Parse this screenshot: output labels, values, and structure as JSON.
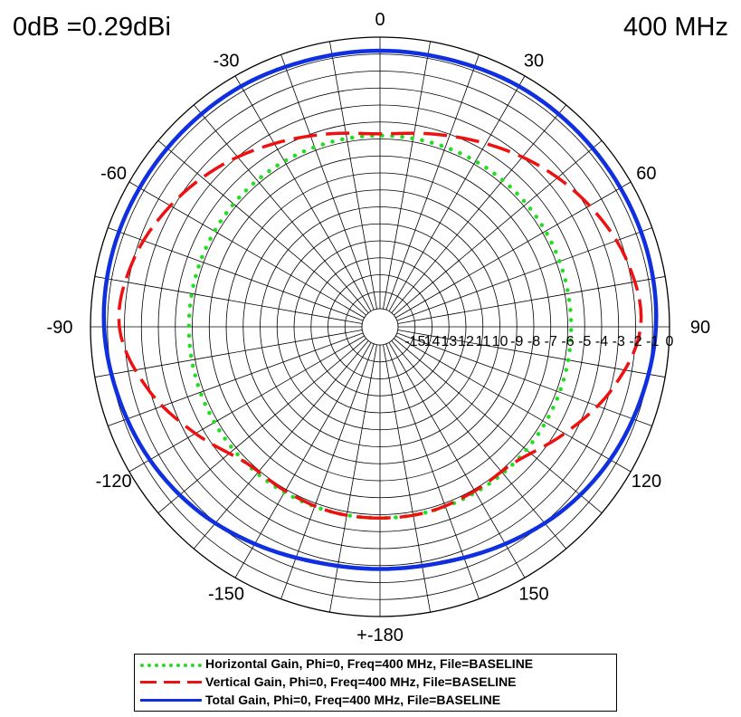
{
  "header": {
    "reference": "0dB =0.29dBi",
    "frequency": "400 MHz"
  },
  "chart_data": {
    "type": "line",
    "projection": "polar",
    "angle_labels": [
      "0",
      "30",
      "60",
      "90",
      "120",
      "150",
      "+-180",
      "-150",
      "-120",
      "-90",
      "-60",
      "-30"
    ],
    "radial_tick_labels": [
      "-15",
      "14",
      "13",
      "12",
      "11",
      "10",
      "-9",
      "-8",
      "-7",
      "-6",
      "-5",
      "-4",
      "-3",
      "-2",
      "-1",
      "0"
    ],
    "rlim": [
      -16,
      0
    ],
    "grid": true,
    "legend_position": "bottom",
    "series": [
      {
        "name": "Horizontal Gain, Phi=0, Freq=400 MHz, File=BASELINE",
        "color": "#22dd22",
        "style": "dotted",
        "angles": [
          -180,
          -150,
          -120,
          -90,
          -60,
          -30,
          0,
          30,
          60,
          90,
          120,
          150,
          180
        ],
        "values": [
          -5.8,
          -5.8,
          -5.8,
          -5.8,
          -5.8,
          -5.8,
          -5.8,
          -5.8,
          -5.8,
          -5.8,
          -5.8,
          -5.8,
          -5.8
        ]
      },
      {
        "name": "Vertical Gain, Phi=0, Freq=400 MHz, File=BASELINE",
        "color": "#ee1111",
        "style": "dashed",
        "angles": [
          -180,
          -165,
          -150,
          -135,
          -120,
          -105,
          -90,
          -75,
          -60,
          -45,
          -30,
          -15,
          0,
          15,
          30,
          45,
          60,
          75,
          90,
          105,
          120,
          135,
          150,
          165,
          180
        ],
        "values": [
          -5.8,
          -5.8,
          -5.9,
          -5.8,
          -4.5,
          -2.9,
          -1.7,
          -2.0,
          -2.8,
          -3.7,
          -4.6,
          -5.3,
          -5.7,
          -5.3,
          -4.6,
          -3.7,
          -2.8,
          -2.0,
          -1.7,
          -2.9,
          -4.5,
          -5.8,
          -5.9,
          -5.8,
          -5.8
        ]
      },
      {
        "name": "Total Gain, Phi=0, Freq=400 MHz, File=BASELINE",
        "color": "#1030e0",
        "style": "solid",
        "angles": [
          -180,
          -165,
          -150,
          -135,
          -120,
          -105,
          -90,
          -75,
          -60,
          -45,
          -30,
          -15,
          0,
          15,
          30,
          45,
          60,
          75,
          90,
          105,
          120,
          135,
          150,
          165,
          180
        ],
        "values": [
          -2.8,
          -2.7,
          -2.3,
          -1.8,
          -1.4,
          -1.1,
          -0.8,
          -0.7,
          -0.7,
          -0.7,
          -0.7,
          -0.8,
          -0.8,
          -0.8,
          -0.7,
          -0.7,
          -0.7,
          -0.7,
          -0.8,
          -1.1,
          -1.4,
          -1.8,
          -2.3,
          -2.7,
          -2.8
        ]
      }
    ]
  }
}
